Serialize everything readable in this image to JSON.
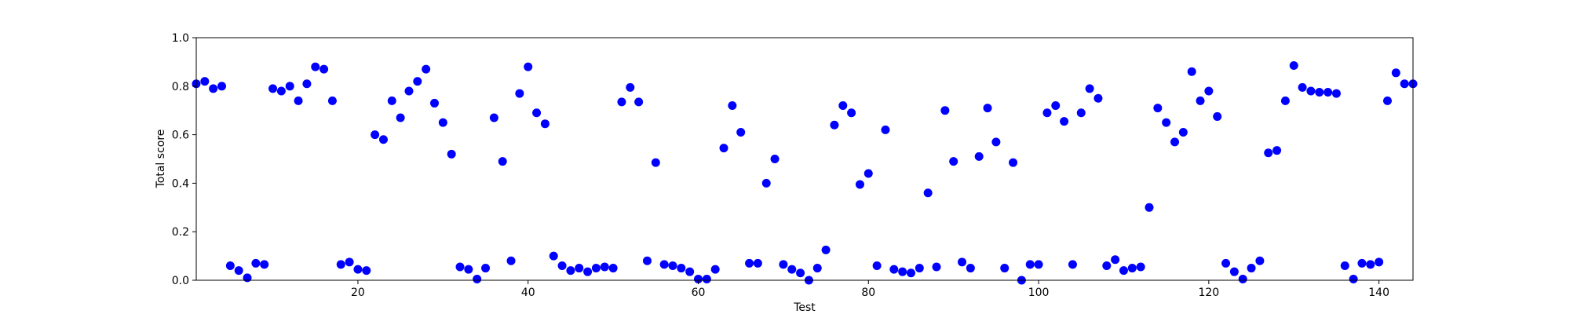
{
  "chart_data": {
    "type": "scatter",
    "title": "",
    "xlabel": "Test",
    "ylabel": "Total score",
    "xlim": [
      1,
      144
    ],
    "ylim": [
      0,
      1.0
    ],
    "xticks": [
      20,
      40,
      60,
      80,
      100,
      120,
      140
    ],
    "yticks": [
      0.0,
      0.2,
      0.4,
      0.6,
      0.8,
      1.0
    ],
    "ytick_labels": [
      "0.0",
      "0.2",
      "0.4",
      "0.6",
      "0.8",
      "1.0"
    ],
    "grid": false,
    "marker_color": "#0000ff",
    "x": [
      1,
      2,
      3,
      4,
      5,
      6,
      7,
      8,
      9,
      10,
      11,
      12,
      13,
      14,
      15,
      16,
      17,
      18,
      19,
      20,
      21,
      22,
      23,
      24,
      25,
      26,
      27,
      28,
      29,
      30,
      31,
      32,
      33,
      34,
      35,
      36,
      37,
      38,
      39,
      40,
      41,
      42,
      43,
      44,
      45,
      46,
      47,
      48,
      49,
      50,
      51,
      52,
      53,
      54,
      55,
      56,
      57,
      58,
      59,
      60,
      61,
      62,
      63,
      64,
      65,
      66,
      67,
      68,
      69,
      70,
      71,
      72,
      73,
      74,
      75,
      76,
      77,
      78,
      79,
      80,
      81,
      82,
      83,
      84,
      85,
      86,
      87,
      88,
      89,
      90,
      91,
      92,
      93,
      94,
      95,
      96,
      97,
      98,
      99,
      100,
      101,
      102,
      103,
      104,
      105,
      106,
      107,
      108,
      109,
      110,
      111,
      112,
      113,
      114,
      115,
      116,
      117,
      118,
      119,
      120,
      121,
      122,
      123,
      124,
      125,
      126,
      127,
      128,
      129,
      130,
      131,
      132,
      133,
      134,
      135,
      136,
      137,
      138,
      139,
      140,
      141,
      142,
      143,
      144
    ],
    "y": [
      0.81,
      0.82,
      0.79,
      0.8,
      0.06,
      0.04,
      0.01,
      0.07,
      0.065,
      0.79,
      0.78,
      0.8,
      0.74,
      0.81,
      0.88,
      0.87,
      0.74,
      0.065,
      0.075,
      0.045,
      0.04,
      0.6,
      0.58,
      0.74,
      0.67,
      0.78,
      0.82,
      0.87,
      0.73,
      0.65,
      0.52,
      0.055,
      0.045,
      0.005,
      0.05,
      0.67,
      0.49,
      0.08,
      0.77,
      0.88,
      0.69,
      0.645,
      0.1,
      0.06,
      0.04,
      0.05,
      0.035,
      0.05,
      0.055,
      0.05,
      0.735,
      0.795,
      0.735,
      0.08,
      0.485,
      0.065,
      0.06,
      0.05,
      0.035,
      0.005,
      0.005,
      0.045,
      0.545,
      0.72,
      0.61,
      0.07,
      0.07,
      0.4,
      0.5,
      0.065,
      0.045,
      0.03,
      0.0,
      0.05,
      0.125,
      0.64,
      0.72,
      0.69,
      0.395,
      0.44,
      0.06,
      0.62,
      0.045,
      0.035,
      0.03,
      0.05,
      0.36,
      0.055,
      0.7,
      0.49,
      0.075,
      0.05,
      0.51,
      0.71,
      0.57,
      0.05,
      0.485,
      0.0,
      0.065,
      0.065,
      0.69,
      0.72,
      0.655,
      0.065,
      0.69,
      0.79,
      0.75,
      0.06,
      0.085,
      0.04,
      0.05,
      0.055,
      0.3,
      0.71,
      0.65,
      0.57,
      0.61,
      0.86,
      0.74,
      0.78,
      0.675,
      0.07,
      0.035,
      0.005,
      0.05,
      0.08,
      0.525,
      0.535,
      0.74,
      0.885,
      0.795,
      0.78,
      0.775,
      0.775,
      0.77,
      0.06,
      0.005,
      0.07,
      0.065,
      0.075,
      0.74,
      0.855,
      0.81,
      0.81
    ]
  }
}
